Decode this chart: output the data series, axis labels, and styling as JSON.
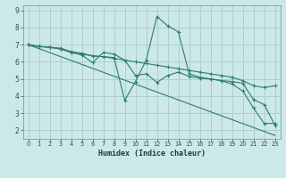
{
  "bg_color": "#cce8e8",
  "grid_color": "#aacccc",
  "line_color": "#2e7d6e",
  "xlabel": "Humidex (Indice chaleur)",
  "xlim": [
    -0.5,
    23.5
  ],
  "ylim": [
    1.5,
    9.3
  ],
  "xticks": [
    0,
    1,
    2,
    3,
    4,
    5,
    6,
    7,
    8,
    9,
    10,
    11,
    12,
    13,
    14,
    15,
    16,
    17,
    18,
    19,
    20,
    21,
    22,
    23
  ],
  "yticks": [
    2,
    3,
    4,
    5,
    6,
    7,
    8,
    9
  ],
  "series": [
    {
      "x": [
        0,
        1,
        2,
        3,
        4,
        5,
        6,
        7,
        8,
        10,
        11,
        12,
        13,
        14,
        15,
        16,
        17,
        18,
        19,
        20,
        21,
        22,
        23
      ],
      "y": [
        7.0,
        6.9,
        6.85,
        6.8,
        6.6,
        6.5,
        6.35,
        6.3,
        6.2,
        6.0,
        5.9,
        5.8,
        5.7,
        5.6,
        5.5,
        5.4,
        5.3,
        5.2,
        5.1,
        4.9,
        4.6,
        4.5,
        4.6
      ],
      "markers": true
    },
    {
      "x": [
        0,
        1,
        2,
        3,
        4,
        5,
        6,
        8,
        9,
        10,
        11,
        12,
        13,
        14,
        15,
        16,
        17,
        18,
        19,
        20,
        21,
        22,
        23
      ],
      "y": [
        7.0,
        6.9,
        6.85,
        6.75,
        6.55,
        6.45,
        6.35,
        6.25,
        3.75,
        4.85,
        6.1,
        8.65,
        8.1,
        7.75,
        5.3,
        5.1,
        5.0,
        4.9,
        4.7,
        4.3,
        3.3,
        2.4,
        2.4
      ],
      "markers": true
    },
    {
      "x": [
        0,
        1,
        2,
        3,
        4,
        5,
        6,
        7,
        8,
        9,
        10,
        11,
        12,
        13,
        14,
        15,
        16,
        17,
        18,
        19,
        20,
        21,
        22,
        23
      ],
      "y": [
        7.0,
        6.9,
        6.85,
        6.75,
        6.55,
        6.4,
        5.95,
        6.55,
        6.45,
        6.1,
        5.2,
        5.3,
        4.8,
        5.2,
        5.4,
        5.15,
        5.05,
        5.0,
        4.9,
        4.85,
        4.75,
        3.8,
        3.5,
        2.3
      ],
      "markers": true
    },
    {
      "x": [
        0,
        23
      ],
      "y": [
        7.0,
        1.7
      ],
      "markers": false
    }
  ]
}
